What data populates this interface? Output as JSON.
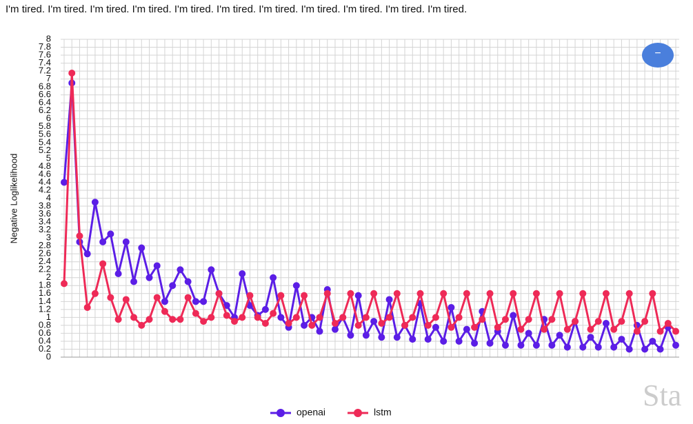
{
  "chart_data": {
    "type": "line",
    "header_text": "I'm tired. I'm tired. I'm tired. I'm tired. I'm tired. I'm tired. I'm tired. I'm tired. I'm tired. I'm tired. I'm tired.",
    "ylabel": "Negative Loglikelihood",
    "button_label": "−",
    "watermark": "Sta",
    "categories": [
      null,
      null,
      null,
      null,
      null,
      null,
      null,
      null,
      null,
      null,
      null,
      null,
      null,
      null,
      null,
      null,
      null,
      null,
      null,
      null,
      null,
      null,
      null,
      null,
      null,
      null,
      null,
      null,
      null,
      null,
      null,
      null,
      null,
      null,
      null,
      null,
      null,
      null,
      null,
      null,
      null,
      null,
      null,
      null,
      null,
      null,
      null,
      null,
      null,
      null,
      null,
      null,
      null,
      null,
      null,
      null,
      null,
      null,
      null,
      null,
      null,
      null,
      null,
      null,
      null,
      null,
      null,
      null,
      null,
      null,
      null,
      null,
      null,
      null,
      null,
      null,
      null,
      null,
      null,
      null
    ],
    "series": [
      {
        "name": "openai",
        "color": "#5b1ee6",
        "values": [
          4.4,
          6.9,
          2.9,
          2.6,
          3.9,
          2.9,
          3.1,
          2.1,
          2.9,
          1.9,
          2.75,
          2.0,
          2.3,
          1.4,
          1.8,
          2.2,
          1.9,
          1.4,
          1.4,
          2.2,
          1.6,
          1.3,
          1.0,
          2.1,
          1.3,
          1.05,
          1.2,
          2.0,
          1.0,
          0.75,
          1.8,
          0.8,
          1.0,
          0.65,
          1.7,
          0.7,
          1.0,
          0.55,
          1.55,
          0.55,
          0.9,
          0.5,
          1.45,
          0.5,
          0.8,
          0.45,
          1.35,
          0.45,
          0.75,
          0.4,
          1.25,
          0.4,
          0.7,
          0.35,
          1.15,
          0.35,
          0.65,
          0.3,
          1.05,
          0.3,
          0.6,
          0.3,
          0.95,
          0.3,
          0.55,
          0.25,
          0.9,
          0.25,
          0.5,
          0.25,
          0.85,
          0.25,
          0.45,
          0.2,
          0.8,
          0.2,
          0.4,
          0.2,
          0.75,
          0.3
        ]
      },
      {
        "name": "lstm",
        "color": "#ee2a57",
        "values": [
          1.85,
          7.15,
          3.05,
          1.25,
          1.6,
          2.35,
          1.5,
          0.95,
          1.45,
          1.0,
          0.8,
          0.95,
          1.5,
          1.15,
          0.95,
          0.95,
          1.5,
          1.1,
          0.9,
          1.0,
          1.6,
          1.05,
          0.9,
          1.0,
          1.55,
          1.0,
          0.85,
          1.1,
          1.55,
          0.85,
          1.0,
          1.55,
          0.8,
          1.0,
          1.6,
          0.85,
          1.0,
          1.6,
          0.8,
          1.0,
          1.6,
          0.85,
          1.0,
          1.6,
          0.8,
          1.0,
          1.6,
          0.8,
          1.0,
          1.6,
          0.75,
          1.0,
          1.6,
          0.75,
          0.95,
          1.6,
          0.75,
          0.95,
          1.6,
          0.7,
          0.95,
          1.6,
          0.7,
          0.95,
          1.6,
          0.7,
          0.9,
          1.6,
          0.7,
          0.9,
          1.6,
          0.7,
          0.9,
          1.6,
          0.65,
          0.9,
          1.6,
          0.65,
          0.85,
          0.65
        ]
      }
    ],
    "ylim": [
      0,
      8
    ],
    "yticks": [
      0,
      0.2,
      0.4,
      0.6,
      0.8,
      1,
      1.2,
      1.4,
      1.6,
      1.8,
      2,
      2.2,
      2.4,
      2.6,
      2.8,
      3,
      3.2,
      3.4,
      3.6,
      3.8,
      4,
      4.2,
      4.4,
      4.6,
      4.8,
      5,
      5.2,
      5.4,
      5.6,
      5.8,
      6,
      6.2,
      6.4,
      6.6,
      6.8,
      7,
      7.2,
      7.4,
      7.6,
      7.8,
      8
    ],
    "grid": true,
    "legend": "bottom"
  }
}
